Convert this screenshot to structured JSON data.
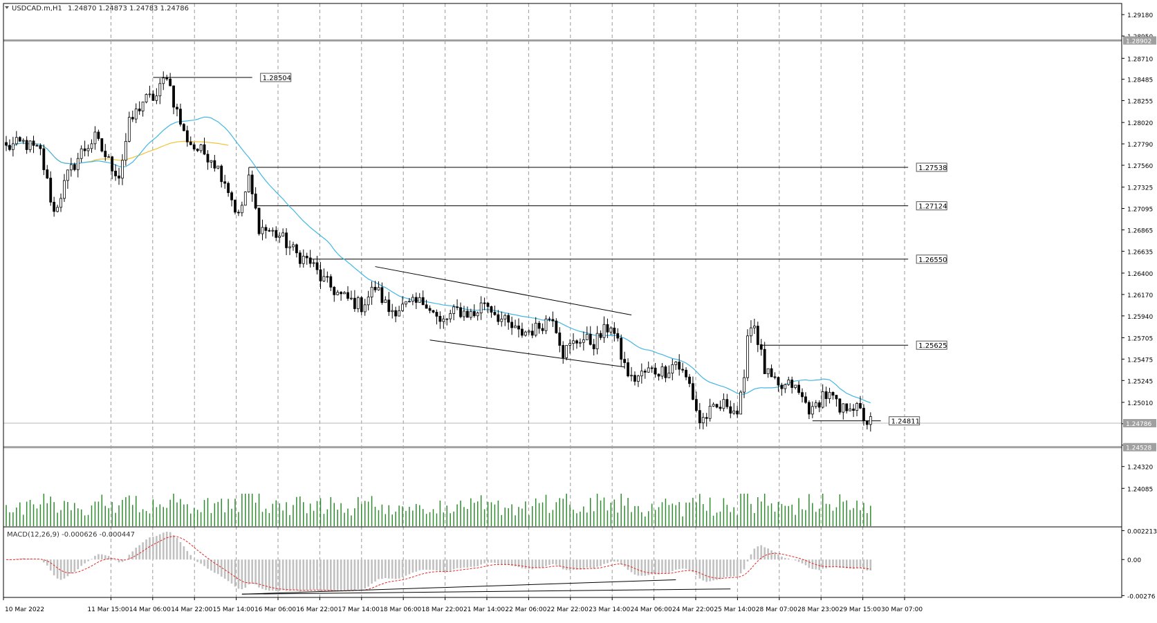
{
  "header": {
    "symbol_label": "USDCAD.m,H1",
    "ohlc_label": "1.24870 1.24873 1.24783 1.24786",
    "dropdown_icon": "triangle-down-icon"
  },
  "macd_label": "MACD(12,26,9) -0.000626 -0.000447",
  "colors": {
    "background": "#ffffff",
    "candle": "#000000",
    "volume": "#2e8b2e",
    "ma_fast": "#41b6e6",
    "ma_slow": "#f2c12e",
    "macd_hist": "#c0c0c0",
    "macd_signal": "#e8231e",
    "grid": "#808080"
  },
  "chart_data": {
    "type": "candlestick",
    "symbol": "USDCAD.m",
    "timeframe": "H1",
    "price_axis": {
      "ticks": [
        "1.29180",
        "1.28950",
        "1.28710",
        "1.28485",
        "1.28255",
        "1.28020",
        "1.27790",
        "1.27560",
        "1.27325",
        "1.27095",
        "1.26865",
        "1.26635",
        "1.26400",
        "1.26170",
        "1.25940",
        "1.25705",
        "1.25475",
        "1.25245",
        "1.25010",
        "1.24780",
        "1.24550",
        "1.24320",
        "1.24085"
      ],
      "range": [
        1.2405,
        1.293
      ]
    },
    "time_axis": {
      "labels": [
        "10 Mar 2022",
        "11 Mar 15:00",
        "14 Mar 06:00",
        "14 Mar 22:00",
        "15 Mar 14:00",
        "16 Mar 06:00",
        "16 Mar 22:00",
        "17 Mar 14:00",
        "18 Mar 06:00",
        "18 Mar 22:00",
        "21 Mar 14:00",
        "22 Mar 06:00",
        "22 Mar 22:00",
        "23 Mar 14:00",
        "24 Mar 06:00",
        "24 Mar 22:00",
        "25 Mar 14:00",
        "28 Mar 07:00",
        "28 Mar 23:00",
        "29 Mar 15:00",
        "30 Mar 07:00"
      ]
    },
    "price_tags": [
      {
        "label": "1.28902",
        "value": 1.28902,
        "style": "highlight"
      },
      {
        "label": "1.24786",
        "value": 1.24786,
        "style": "highlight"
      },
      {
        "label": "1.24528",
        "value": 1.24528,
        "style": "highlight"
      }
    ],
    "level_labels": [
      {
        "label": "1.28504",
        "value": 1.28504
      },
      {
        "label": "1.27538",
        "value": 1.27538
      },
      {
        "label": "1.27124",
        "value": 1.27124
      },
      {
        "label": "1.26550",
        "value": 1.2655
      },
      {
        "label": "1.25625",
        "value": 1.25625
      },
      {
        "label": "1.24811",
        "value": 1.24811
      }
    ],
    "horizontal_lines": [
      {
        "name": "level-128902",
        "value": 1.28902,
        "from_bar": 0,
        "to_bar": 400,
        "style": "thick-gray"
      },
      {
        "name": "level-124528",
        "value": 1.24528,
        "from_bar": 0,
        "to_bar": 400,
        "style": "thick-gray"
      },
      {
        "name": "level-124786",
        "value": 1.24786,
        "from_bar": 0,
        "to_bar": 400,
        "style": "thin-gray"
      },
      {
        "name": "level-128504",
        "value": 1.28504,
        "from_bar": 43,
        "to_bar": 72,
        "label_index": 0
      },
      {
        "name": "level-127538",
        "value": 1.27538,
        "from_bar": 71,
        "to_bar": 264,
        "label_index": 1
      },
      {
        "name": "level-127124",
        "value": 1.27124,
        "from_bar": 73,
        "to_bar": 264,
        "label_index": 2
      },
      {
        "name": "level-126550",
        "value": 1.2655,
        "from_bar": 89,
        "to_bar": 264,
        "label_index": 3
      },
      {
        "name": "level-125625",
        "value": 1.25625,
        "from_bar": 221,
        "to_bar": 264,
        "label_index": 4
      },
      {
        "name": "level-124811",
        "value": 1.24811,
        "from_bar": 236,
        "to_bar": 256,
        "label_index": 5
      }
    ],
    "trendlines": [
      {
        "name": "channel-upper",
        "x1": 108,
        "y1": 1.2647,
        "x2": 183,
        "y2": 1.2595
      },
      {
        "name": "channel-lower",
        "x1": 124,
        "y1": 1.2568,
        "x2": 181,
        "y2": 1.2539
      }
    ],
    "macd_trendlines": [
      {
        "name": "macd-trend-1",
        "x1": 69,
        "y1": -0.00265,
        "x2": 196,
        "y2": -0.00155
      },
      {
        "name": "macd-trend-2",
        "x1": 69,
        "y1": -0.00265,
        "x2": 212,
        "y2": -0.00225
      }
    ],
    "ma_periods": {
      "fast": 50,
      "slow": 200
    },
    "anchors": [
      [
        0,
        1.2775
      ],
      [
        5,
        1.278
      ],
      [
        10,
        1.277
      ],
      [
        14,
        1.2705
      ],
      [
        18,
        1.2745
      ],
      [
        22,
        1.277
      ],
      [
        26,
        1.2785
      ],
      [
        30,
        1.276
      ],
      [
        33,
        1.2745
      ],
      [
        36,
        1.28
      ],
      [
        40,
        1.2825
      ],
      [
        44,
        1.283
      ],
      [
        47,
        1.2855
      ],
      [
        49,
        1.2825
      ],
      [
        52,
        1.279
      ],
      [
        55,
        1.2775
      ],
      [
        60,
        1.2765
      ],
      [
        64,
        1.274
      ],
      [
        68,
        1.27
      ],
      [
        71,
        1.274
      ],
      [
        74,
        1.269
      ],
      [
        80,
        1.268
      ],
      [
        85,
        1.266
      ],
      [
        89,
        1.2652
      ],
      [
        92,
        1.2635
      ],
      [
        98,
        1.2615
      ],
      [
        104,
        1.2605
      ],
      [
        108,
        1.2625
      ],
      [
        112,
        1.26
      ],
      [
        118,
        1.2605
      ],
      [
        123,
        1.261
      ],
      [
        127,
        1.2585
      ],
      [
        132,
        1.26
      ],
      [
        137,
        1.2595
      ],
      [
        140,
        1.261
      ],
      [
        145,
        1.259
      ],
      [
        150,
        1.2575
      ],
      [
        155,
        1.258
      ],
      [
        160,
        1.2595
      ],
      [
        163,
        1.2555
      ],
      [
        168,
        1.257
      ],
      [
        172,
        1.2565
      ],
      [
        177,
        1.2585
      ],
      [
        181,
        1.254
      ],
      [
        183,
        1.2525
      ],
      [
        188,
        1.2535
      ],
      [
        193,
        1.2535
      ],
      [
        196,
        1.2545
      ],
      [
        200,
        1.252
      ],
      [
        203,
        1.248
      ],
      [
        206,
        1.249
      ],
      [
        211,
        1.25
      ],
      [
        214,
        1.249
      ],
      [
        216,
        1.252
      ],
      [
        217,
        1.258
      ],
      [
        219,
        1.2585
      ],
      [
        222,
        1.2535
      ],
      [
        226,
        1.2515
      ],
      [
        230,
        1.252
      ],
      [
        233,
        1.2505
      ],
      [
        236,
        1.249
      ],
      [
        239,
        1.251
      ],
      [
        242,
        1.2505
      ],
      [
        244,
        1.249
      ],
      [
        247,
        1.25
      ],
      [
        250,
        1.249
      ],
      [
        252,
        1.248
      ]
    ]
  }
}
